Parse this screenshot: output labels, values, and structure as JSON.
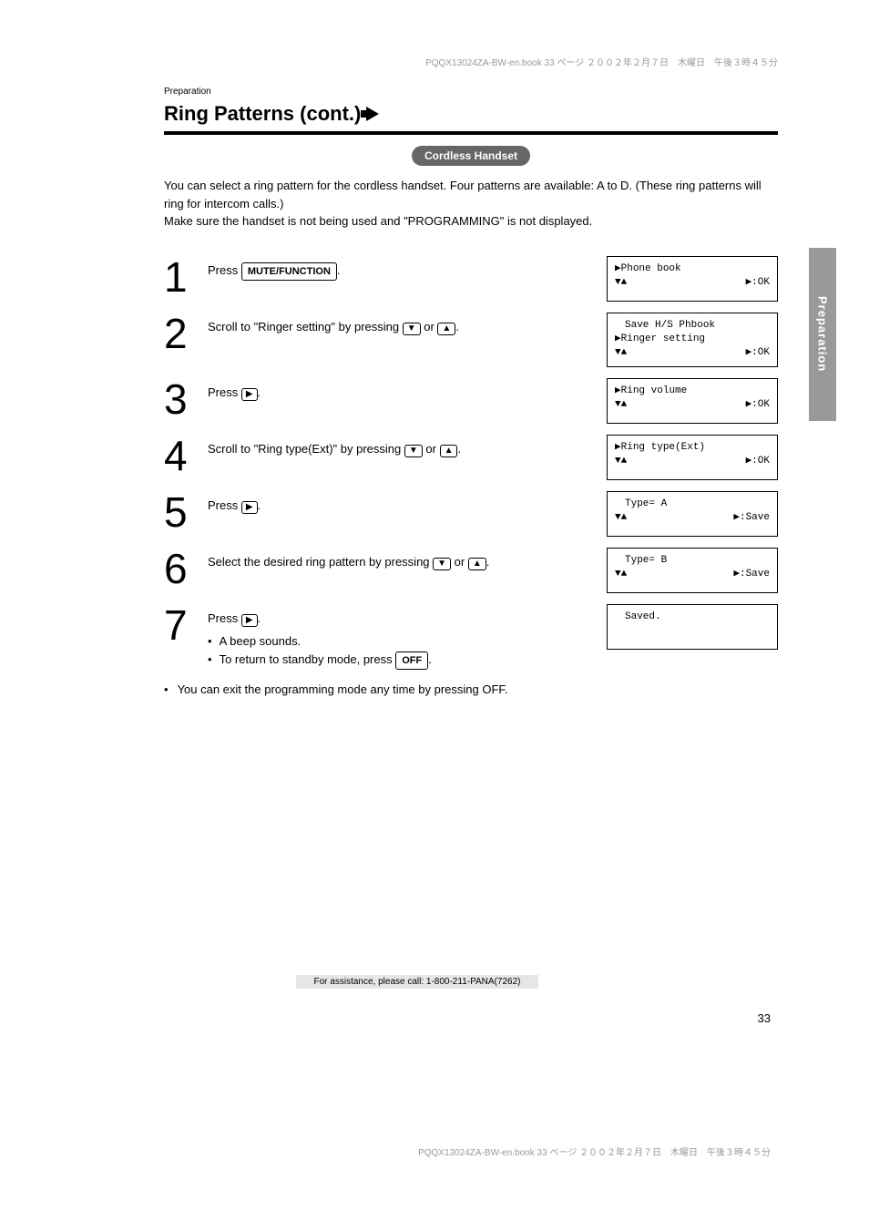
{
  "meta_top": "PQQX13024ZA-BW-en.book  33 ページ  ２００２年２月７日　木曜日　午後３時４５分",
  "page_label": "Preparation",
  "section_title": "Ring Patterns (cont.)",
  "pill_label": "Cordless Handset",
  "intro": "You can select a ring pattern for the cordless handset. Four patterns are available: A to D. (These ring patterns will ring for intercom calls.)\nMake sure the handset is not being used and \"PROGRAMMING\" is not displayed.",
  "side_tab": "Preparation",
  "steps": [
    {
      "n": "1",
      "text_parts": [
        "Press ",
        {
          "key": "MUTE/FUNCTION"
        },
        "."
      ],
      "display": {
        "l1": "▶Phone book",
        "l2_left": "▼▲",
        "l2_right": "▶:OK"
      }
    },
    {
      "n": "2",
      "text_parts": [
        "Scroll to \"Ringer setting\" by pressing ",
        {
          "mini": "▼"
        },
        " or ",
        {
          "mini": "▲"
        },
        "."
      ],
      "display": {
        "l0": "　Save H/S Phbook",
        "l1": "▶Ringer setting",
        "l2_left": "▼▲",
        "l2_right": "▶:OK"
      }
    },
    {
      "n": "3",
      "text_parts": [
        "Press ",
        {
          "mini": "▶"
        },
        "."
      ],
      "display": {
        "l1": "▶Ring volume",
        "l2_left": "▼▲",
        "l2_right": "▶:OK"
      }
    },
    {
      "n": "4",
      "text_parts": [
        "Scroll to \"Ring type(Ext)\" by pressing ",
        {
          "mini": "▼"
        },
        " or ",
        {
          "mini": "▲"
        },
        "."
      ],
      "display": {
        "l1": "▶Ring type(Ext)",
        "l2_left": "▼▲",
        "l2_right": "▶:OK"
      }
    },
    {
      "n": "5",
      "text_parts": [
        "Press ",
        {
          "mini": "▶"
        },
        "."
      ],
      "display": {
        "l1": "　Type= A",
        "l2_left": "▼▲",
        "l2_right": "▶:Save"
      }
    },
    {
      "n": "6",
      "text_parts": [
        "Select the desired ring pattern by pressing ",
        {
          "mini": "▼"
        },
        " or ",
        {
          "mini": "▲"
        },
        "."
      ],
      "display": {
        "l1": "　Type= B",
        "l2_left": "▼▲",
        "l2_right": "▶:Save"
      }
    },
    {
      "n": "7",
      "text_parts": [
        "Press ",
        {
          "mini": "▶"
        },
        "."
      ],
      "bullets": [
        [
          "A beep sounds."
        ],
        [
          "To return to standby mode, press ",
          {
            "key": "OFF"
          },
          "."
        ]
      ],
      "display": {
        "l1": "　Saved."
      }
    }
  ],
  "footnote": [
    "You can exit the programming mode any time by pressing ",
    {
      "key": "OFF"
    },
    "."
  ],
  "footer_band": "For assistance, please call: 1-800-211-PANA(7262)",
  "page_number": "33",
  "meta_bottom": "PQQX13024ZA-BW-en.book  33 ページ  ２００２年２月７日　木曜日　午後３時４５分",
  "colors": {
    "pill_bg": "#666666",
    "pill_fg": "#ffffff",
    "side_bg": "#999999",
    "side_fg": "#ffffff",
    "foot_bg": "#e6e6e6"
  }
}
